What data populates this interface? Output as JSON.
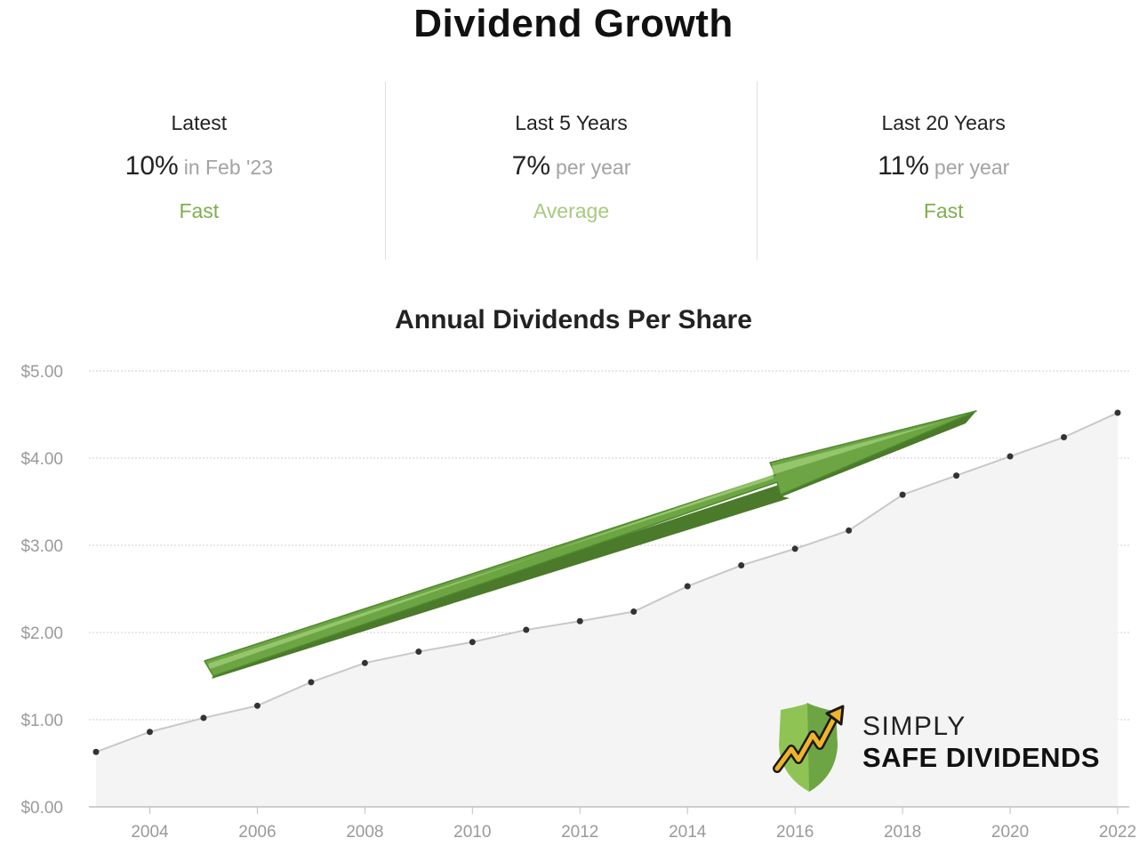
{
  "title": "Dividend Growth",
  "stats": [
    {
      "label": "Latest",
      "value": "10%",
      "suffix": "in Feb '23",
      "rating": "Fast",
      "rating_color": "#7fae4e"
    },
    {
      "label": "Last 5 Years",
      "value": "7%",
      "suffix": "per year",
      "rating": "Average",
      "rating_color": "#a8c97f"
    },
    {
      "label": "Last 20 Years",
      "value": "11%",
      "suffix": "per year",
      "rating": "Fast",
      "rating_color": "#7fae4e"
    }
  ],
  "chart_data": {
    "type": "area",
    "title": "Annual Dividends Per Share",
    "xlabel": "",
    "ylabel": "",
    "x": [
      2003,
      2004,
      2005,
      2006,
      2007,
      2008,
      2009,
      2010,
      2011,
      2012,
      2013,
      2014,
      2015,
      2016,
      2017,
      2018,
      2019,
      2020,
      2021,
      2022
    ],
    "series": [
      {
        "values": [
          0.63,
          0.86,
          1.02,
          1.16,
          1.43,
          1.65,
          1.78,
          1.89,
          2.03,
          2.13,
          2.24,
          2.53,
          2.77,
          2.96,
          3.17,
          3.58,
          3.8,
          4.02,
          4.24,
          4.52
        ]
      }
    ],
    "ylim": [
      0,
      5
    ],
    "xlim": [
      2003,
      2022
    ],
    "yticks": [
      0,
      1,
      2,
      3,
      4,
      5
    ],
    "ytick_labels": [
      "$0.00",
      "$1.00",
      "$2.00",
      "$3.00",
      "$4.00",
      "$5.00"
    ],
    "xticks": [
      2004,
      2006,
      2008,
      2010,
      2012,
      2014,
      2016,
      2018,
      2020,
      2022
    ],
    "xtick_labels": [
      "2004",
      "2006",
      "2008",
      "2010",
      "2012",
      "2014",
      "2016",
      "2018",
      "2020",
      "2022"
    ],
    "grid": true,
    "colors": {
      "line": "#c8c8c8",
      "fill": "#f4f4f4",
      "marker": "#333333",
      "arrow": "#6da544"
    }
  },
  "logo": {
    "line1": "SIMPLY",
    "line2": "SAFE DIVIDENDS",
    "icon": "shield-rising-arrow-icon"
  }
}
